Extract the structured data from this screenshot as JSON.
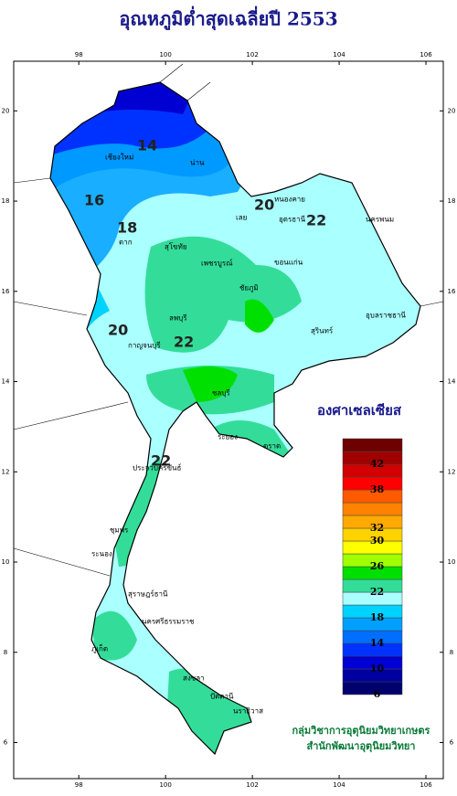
{
  "map": {
    "title": "อุณหภูมิต่ำสุดเฉลี่ยปี 2553",
    "xlim": [
      96.5,
      106.4
    ],
    "ylim": [
      5.2,
      21.1
    ],
    "lon_ticks": [
      98,
      100,
      102,
      104,
      106
    ],
    "lat_ticks": [
      20,
      18,
      16,
      14,
      12,
      10,
      8,
      6
    ],
    "provinces": [
      "เชียงใหม่",
      "น่าน",
      "ตาก",
      "สุโขทัย",
      "เลย",
      "หนองคาย",
      "อุดรธานี",
      "นครพนม",
      "ขอนแก่น",
      "เพชรบูรณ์",
      "ชัยภูมิ",
      "ลพบุรี",
      "สุรินทร์",
      "อุบลราชธานี",
      "กาญจนบุรี",
      "ชลบุรี",
      "ระยอง",
      "ตราด",
      "ประจวบคีรีขันธ์",
      "ชุมพร",
      "ระนอง",
      "สุราษฎร์ธานี",
      "นครศรีธรรมราช",
      "ภูเก็ต",
      "สงขลา",
      "ปัตตานี",
      "นราธิวาส"
    ],
    "contour_labels": [
      14,
      16,
      18,
      20,
      22,
      22,
      22,
      20
    ],
    "legend": {
      "title": "องศาเซลเซียส",
      "colors": [
        "#00006e",
        "#0000a0",
        "#0000d2",
        "#0032ff",
        "#006eff",
        "#00a0ff",
        "#00d2ff",
        "#aaffff",
        "#33dd99",
        "#00e000",
        "#a0ff00",
        "#ffff00",
        "#ffd200",
        "#ffaa00",
        "#ff8200",
        "#ff5a00",
        "#ff0000",
        "#d20000",
        "#a00000",
        "#6e0000"
      ],
      "ticks": [
        42,
        38,
        32,
        30,
        26,
        22,
        18,
        14,
        10,
        6
      ]
    },
    "credit": [
      "กลุ่มวิชาการอุตุนิยมวิทยาเกษตร",
      "สำนักพัฒนาอุตุนิยมวิทยา"
    ]
  }
}
